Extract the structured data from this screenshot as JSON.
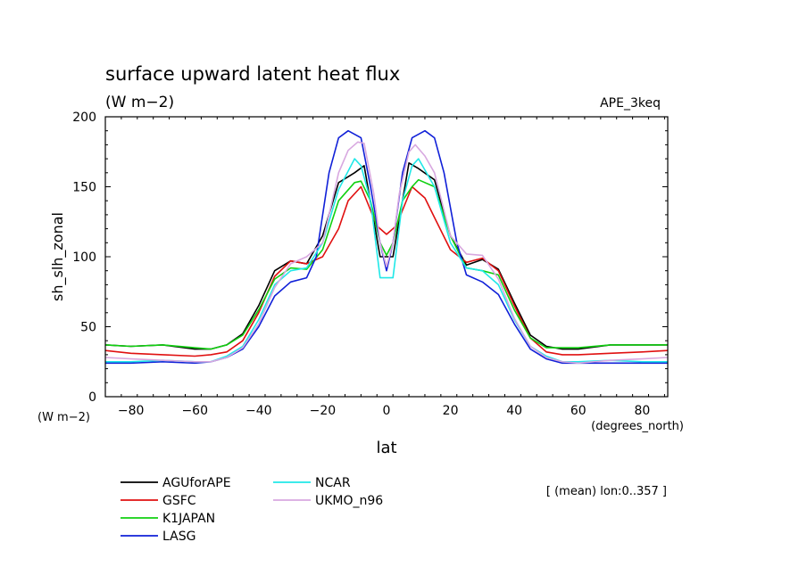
{
  "chart_data": {
    "type": "line",
    "title": "surface upward latent heat flux",
    "subtitle": "(W m−2)",
    "dataset_label": "APE_3keq",
    "xlabel": "lat",
    "x_units": "(degrees_north)",
    "ylabel": "sh_slh_zonal",
    "y_units": "(W m−2)",
    "averaging_note": "[ (mean) lon:0..357 ]",
    "xlim": [
      -88,
      88
    ],
    "ylim": [
      0,
      200
    ],
    "x_ticks": [
      -80,
      -60,
      -40,
      -20,
      0,
      20,
      40,
      60,
      80
    ],
    "y_ticks": [
      0,
      50,
      100,
      150,
      200
    ],
    "grid": false,
    "legend_position": "bottom-left",
    "series": [
      {
        "name": "AGUforAPE",
        "color": "#000000",
        "x": [
          -88,
          -80,
          -70,
          -60,
          -55,
          -50,
          -45,
          -40,
          -35,
          -30,
          -25,
          -20,
          -15,
          -10,
          -7,
          -2,
          0,
          2,
          7,
          10,
          15,
          20,
          25,
          30,
          35,
          40,
          45,
          50,
          55,
          60,
          70,
          80,
          88
        ],
        "y": [
          37,
          36,
          37,
          34,
          34,
          37,
          45,
          65,
          90,
          97,
          95,
          115,
          153,
          160,
          165,
          100,
          100,
          100,
          167,
          163,
          155,
          115,
          94,
          98,
          91,
          67,
          44,
          36,
          34,
          34,
          37,
          37,
          37
        ]
      },
      {
        "name": "GSFC",
        "color": "#e01010",
        "x": [
          -88,
          -80,
          -70,
          -60,
          -55,
          -50,
          -45,
          -40,
          -35,
          -30,
          -25,
          -20,
          -15,
          -12,
          -8,
          -3,
          0,
          3,
          8,
          12,
          15,
          20,
          25,
          30,
          35,
          40,
          45,
          50,
          55,
          60,
          70,
          80,
          88
        ],
        "y": [
          33,
          31,
          30,
          29,
          30,
          32,
          40,
          60,
          86,
          97,
          95,
          100,
          120,
          140,
          150,
          122,
          116,
          122,
          150,
          142,
          128,
          105,
          96,
          99,
          90,
          65,
          42,
          32,
          30,
          30,
          31,
          32,
          33
        ]
      },
      {
        "name": "K1JAPAN",
        "color": "#10d010",
        "x": [
          -88,
          -80,
          -70,
          -60,
          -55,
          -50,
          -45,
          -40,
          -35,
          -30,
          -25,
          -20,
          -15,
          -10,
          -8,
          -5,
          -2,
          0,
          2,
          5,
          8,
          10,
          15,
          20,
          25,
          30,
          35,
          40,
          45,
          50,
          55,
          60,
          70,
          80,
          88
        ],
        "y": [
          37,
          36,
          37,
          35,
          34,
          37,
          44,
          62,
          84,
          92,
          91,
          105,
          140,
          153,
          154,
          140,
          110,
          101,
          110,
          140,
          150,
          155,
          150,
          115,
          92,
          90,
          87,
          62,
          42,
          35,
          35,
          35,
          37,
          37,
          37
        ]
      },
      {
        "name": "LASG",
        "color": "#1020d8",
        "x": [
          -88,
          -80,
          -70,
          -60,
          -55,
          -50,
          -45,
          -40,
          -35,
          -30,
          -25,
          -22,
          -18,
          -15,
          -12,
          -8,
          -5,
          -2,
          0,
          2,
          5,
          8,
          12,
          15,
          18,
          22,
          25,
          30,
          35,
          40,
          45,
          50,
          55,
          60,
          70,
          80,
          88
        ],
        "y": [
          24,
          24,
          25,
          24,
          25,
          28,
          34,
          50,
          72,
          82,
          85,
          100,
          160,
          185,
          190,
          185,
          150,
          110,
          90,
          110,
          160,
          185,
          190,
          185,
          160,
          110,
          87,
          82,
          73,
          52,
          34,
          27,
          24,
          24,
          24,
          24,
          24
        ]
      },
      {
        "name": "NCAR",
        "color": "#20e8e8",
        "x": [
          -88,
          -80,
          -70,
          -60,
          -55,
          -50,
          -45,
          -40,
          -35,
          -30,
          -25,
          -20,
          -15,
          -10,
          -8,
          -5,
          -2,
          0,
          2,
          5,
          8,
          10,
          15,
          20,
          25,
          30,
          35,
          40,
          45,
          50,
          55,
          60,
          70,
          80,
          88
        ],
        "y": [
          25,
          25,
          26,
          25,
          25,
          29,
          36,
          55,
          80,
          90,
          92,
          110,
          148,
          170,
          165,
          140,
          85,
          85,
          85,
          140,
          165,
          170,
          150,
          110,
          92,
          90,
          80,
          55,
          36,
          29,
          25,
          25,
          26,
          25,
          25
        ]
      },
      {
        "name": "UKMO_n96",
        "color": "#d8a8e0",
        "x": [
          -88,
          -80,
          -70,
          -60,
          -55,
          -50,
          -45,
          -40,
          -35,
          -30,
          -25,
          -20,
          -15,
          -12,
          -9,
          -7,
          -4,
          -2,
          0,
          2,
          4,
          7,
          9,
          12,
          15,
          20,
          25,
          30,
          35,
          40,
          45,
          50,
          55,
          60,
          70,
          80,
          88
        ],
        "y": [
          28,
          27,
          26,
          25,
          25,
          28,
          35,
          52,
          78,
          95,
          100,
          110,
          160,
          176,
          182,
          181,
          145,
          110,
          93,
          110,
          145,
          175,
          180,
          172,
          160,
          115,
          102,
          101,
          84,
          56,
          36,
          28,
          25,
          24,
          26,
          27,
          28
        ]
      }
    ]
  }
}
